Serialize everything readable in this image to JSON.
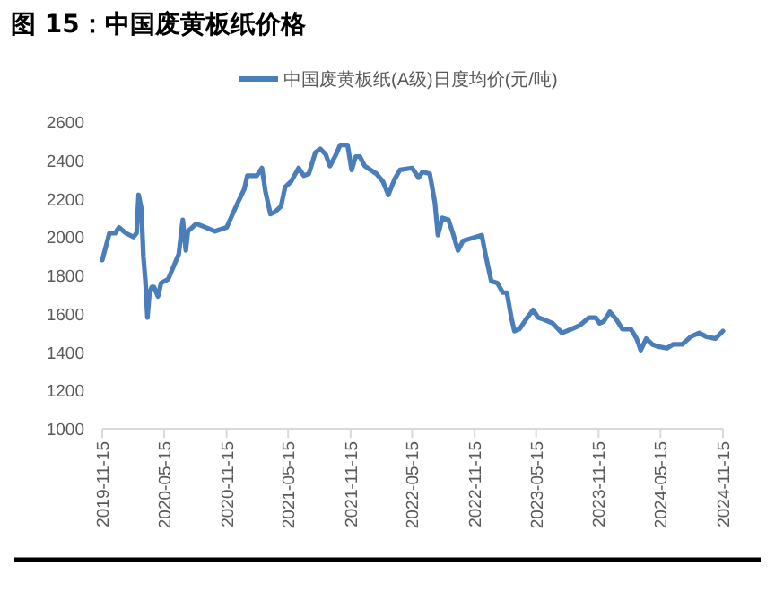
{
  "chart_data": {
    "type": "line",
    "title": "图 15：中国废黄板纸价格",
    "x": [
      "2019-11-15",
      "2019-12-06",
      "2019-12-23",
      "2020-01-03",
      "2020-01-24",
      "2020-02-15",
      "2020-02-24",
      "2020-03-01",
      "2020-03-09",
      "2020-03-15",
      "2020-03-21",
      "2020-03-27",
      "2020-04-02",
      "2020-04-09",
      "2020-04-15",
      "2020-04-27",
      "2020-05-06",
      "2020-05-27",
      "2020-06-15",
      "2020-06-27",
      "2020-07-09",
      "2020-07-18",
      "2020-07-24",
      "2020-08-18",
      "2020-09-15",
      "2020-10-12",
      "2020-11-15",
      "2020-12-18",
      "2021-01-06",
      "2021-01-15",
      "2021-02-12",
      "2021-02-27",
      "2021-03-09",
      "2021-03-24",
      "2021-04-06",
      "2021-04-24",
      "2021-05-06",
      "2021-05-24",
      "2021-06-15",
      "2021-06-30",
      "2021-07-15",
      "2021-08-03",
      "2021-08-18",
      "2021-09-03",
      "2021-09-15",
      "2021-10-03",
      "2021-10-15",
      "2021-11-06",
      "2021-11-18",
      "2021-11-30",
      "2021-12-12",
      "2021-12-27",
      "2022-01-30",
      "2022-02-18",
      "2022-03-06",
      "2022-03-24",
      "2022-04-09",
      "2022-05-15",
      "2022-06-03",
      "2022-06-15",
      "2022-07-06",
      "2022-07-21",
      "2022-07-30",
      "2022-08-12",
      "2022-08-30",
      "2022-09-12",
      "2022-09-27",
      "2022-10-12",
      "2022-10-30",
      "2022-12-06",
      "2022-12-18",
      "2023-01-03",
      "2023-01-21",
      "2023-02-06",
      "2023-02-18",
      "2023-03-03",
      "2023-03-12",
      "2023-03-27",
      "2023-04-15",
      "2023-05-06",
      "2023-05-21",
      "2023-06-06",
      "2023-07-03",
      "2023-07-30",
      "2023-08-27",
      "2023-09-21",
      "2023-10-18",
      "2023-11-06",
      "2023-11-18",
      "2023-11-30",
      "2023-12-18",
      "2024-01-06",
      "2024-01-24",
      "2024-02-18",
      "2024-03-06",
      "2024-03-18",
      "2024-04-03",
      "2024-04-21",
      "2024-05-06",
      "2024-06-03",
      "2024-06-21",
      "2024-07-18",
      "2024-08-12",
      "2024-09-06",
      "2024-09-27",
      "2024-10-24",
      "2024-11-15"
    ],
    "series": [
      {
        "name": "中国废黄板纸(A级)日度均价(元/吨)",
        "color": "#4a7ebb",
        "values": [
          1880,
          2020,
          2020,
          2050,
          2020,
          2000,
          2020,
          2220,
          2150,
          1900,
          1770,
          1580,
          1710,
          1740,
          1740,
          1690,
          1760,
          1780,
          1860,
          1910,
          2090,
          1930,
          2030,
          2070,
          2050,
          2030,
          2050,
          2180,
          2250,
          2320,
          2320,
          2360,
          2240,
          2120,
          2130,
          2160,
          2260,
          2290,
          2360,
          2320,
          2330,
          2440,
          2460,
          2430,
          2370,
          2430,
          2480,
          2480,
          2350,
          2420,
          2420,
          2370,
          2330,
          2290,
          2220,
          2300,
          2350,
          2360,
          2310,
          2340,
          2330,
          2180,
          2010,
          2100,
          2090,
          2020,
          1930,
          1980,
          1990,
          2010,
          1900,
          1770,
          1760,
          1710,
          1710,
          1580,
          1510,
          1520,
          1570,
          1620,
          1580,
          1570,
          1550,
          1500,
          1520,
          1540,
          1580,
          1580,
          1550,
          1560,
          1610,
          1570,
          1520,
          1520,
          1470,
          1410,
          1470,
          1440,
          1430,
          1420,
          1440,
          1440,
          1480,
          1500,
          1480,
          1470,
          1510
        ]
      }
    ],
    "xlim": [
      "2019-11-15",
      "2024-11-15"
    ],
    "xticks": [
      "2019-11-15",
      "2020-05-15",
      "2020-11-15",
      "2021-05-15",
      "2021-11-15",
      "2022-05-15",
      "2022-11-15",
      "2023-05-15",
      "2023-11-15",
      "2024-05-15",
      "2024-11-15"
    ],
    "ylim": [
      1000,
      2600
    ],
    "yticks": [
      1000,
      1200,
      1400,
      1600,
      1800,
      2000,
      2200,
      2400,
      2600
    ],
    "grid": false,
    "legend": "top",
    "line_style": "solid",
    "marker": "none"
  }
}
